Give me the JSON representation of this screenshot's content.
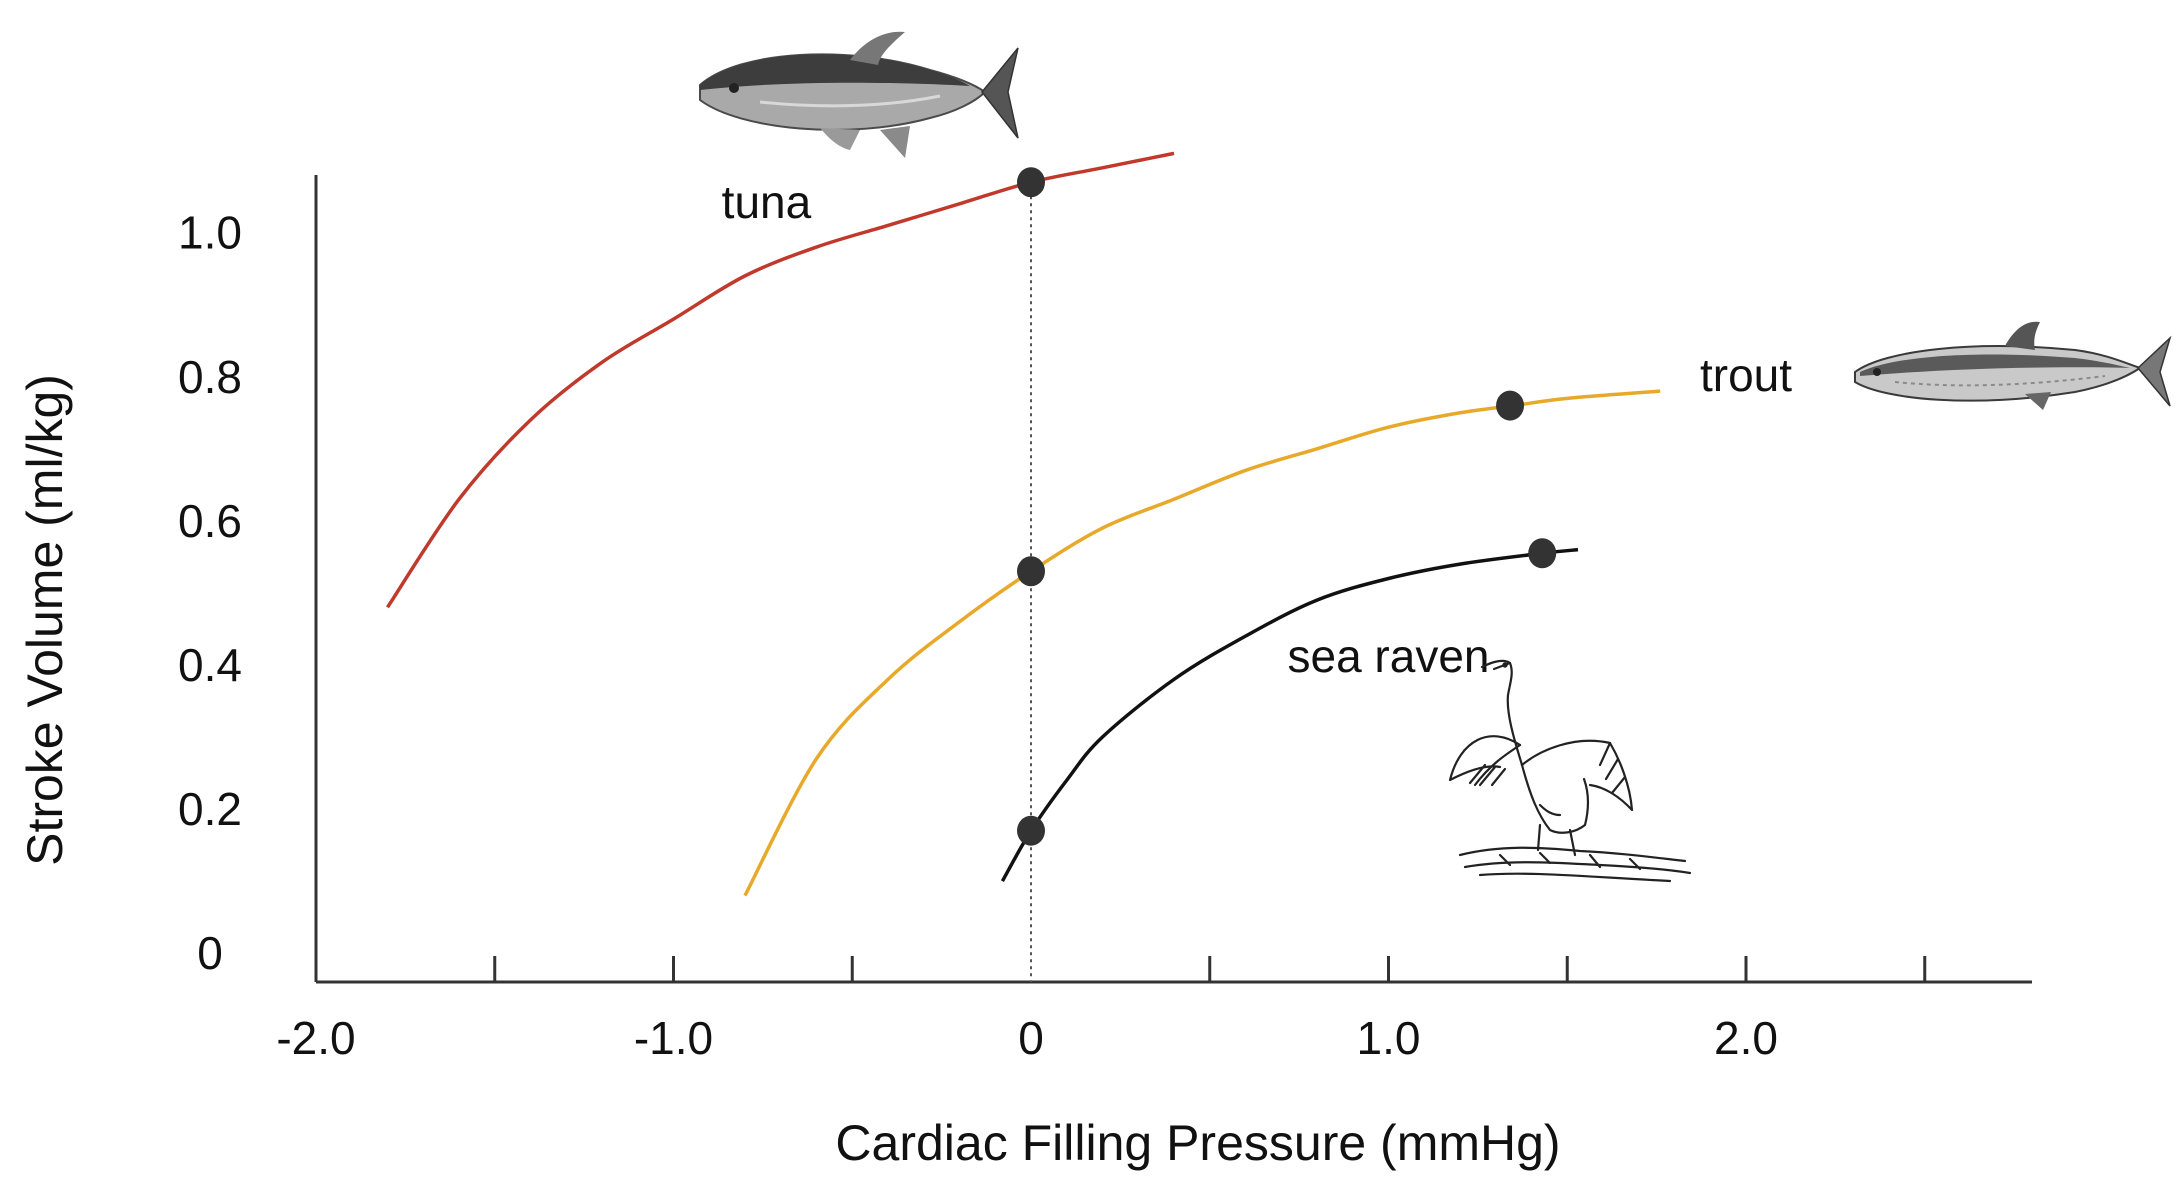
{
  "chart_data": {
    "type": "line",
    "xlabel": "Cardiac Filling Pressure (mmHg)",
    "ylabel": "Stroke Volume (ml/kg)",
    "xlim": [
      -2.0,
      2.8
    ],
    "ylim": [
      -0.04,
      1.08
    ],
    "x_tick_labels": [
      {
        "x": -2.0,
        "label": "-2.0"
      },
      {
        "x": -1.0,
        "label": "-1.0"
      },
      {
        "x": 0,
        "label": "0"
      },
      {
        "x": 1.0,
        "label": "1.0"
      },
      {
        "x": 2.0,
        "label": "2.0"
      }
    ],
    "x_minor_ticks": [
      -1.5,
      -1.0,
      -0.5,
      0.5,
      1.0,
      1.5,
      2.0,
      2.5
    ],
    "y_tick_labels": [
      {
        "y": 0,
        "label": "0"
      },
      {
        "y": 0.2,
        "label": "0.2"
      },
      {
        "y": 0.4,
        "label": "0.4"
      },
      {
        "y": 0.6,
        "label": "0.6"
      },
      {
        "y": 0.8,
        "label": "0.8"
      },
      {
        "y": 1.0,
        "label": "1.0"
      }
    ],
    "reference_line": {
      "x": 0,
      "style": "dotted"
    },
    "grid": false,
    "series": [
      {
        "name": "tuna",
        "color": "#c0392b",
        "label_at": {
          "x": -0.74,
          "y": 1.02
        },
        "x": [
          -1.8,
          -1.6,
          -1.4,
          -1.2,
          -1.0,
          -0.8,
          -0.6,
          -0.4,
          -0.2,
          0.0,
          0.2,
          0.4
        ],
        "y": [
          0.48,
          0.63,
          0.74,
          0.82,
          0.88,
          0.94,
          0.98,
          1.01,
          1.04,
          1.07,
          1.09,
          1.11
        ],
        "markers": [
          {
            "x": 0.0,
            "y": 1.07
          }
        ]
      },
      {
        "name": "trout",
        "color": "#e8a92a",
        "label_at": {
          "x": 2.0,
          "y": 0.78
        },
        "x": [
          -0.8,
          -0.6,
          -0.4,
          -0.2,
          0.0,
          0.2,
          0.4,
          0.6,
          0.8,
          1.0,
          1.2,
          1.35,
          1.5,
          1.76
        ],
        "y": [
          0.08,
          0.27,
          0.38,
          0.46,
          0.53,
          0.59,
          0.63,
          0.67,
          0.7,
          0.73,
          0.75,
          0.76,
          0.77,
          0.78
        ],
        "markers": [
          {
            "x": 0.0,
            "y": 0.53
          },
          {
            "x": 1.34,
            "y": 0.76
          }
        ]
      },
      {
        "name": "sea raven",
        "color": "#111111",
        "label_at": {
          "x": 1.0,
          "y": 0.39
        },
        "x": [
          -0.08,
          0.0,
          0.1,
          0.2,
          0.4,
          0.6,
          0.8,
          1.0,
          1.2,
          1.43,
          1.53
        ],
        "y": [
          0.1,
          0.17,
          0.24,
          0.3,
          0.38,
          0.44,
          0.49,
          0.52,
          0.54,
          0.555,
          0.56
        ],
        "markers": [
          {
            "x": 0.0,
            "y": 0.17
          },
          {
            "x": 1.43,
            "y": 0.555
          }
        ]
      }
    ]
  },
  "icons": {
    "tuna": "tuna-fish-icon",
    "trout": "trout-fish-icon",
    "sea_raven": "sea-raven-bird-icon"
  }
}
